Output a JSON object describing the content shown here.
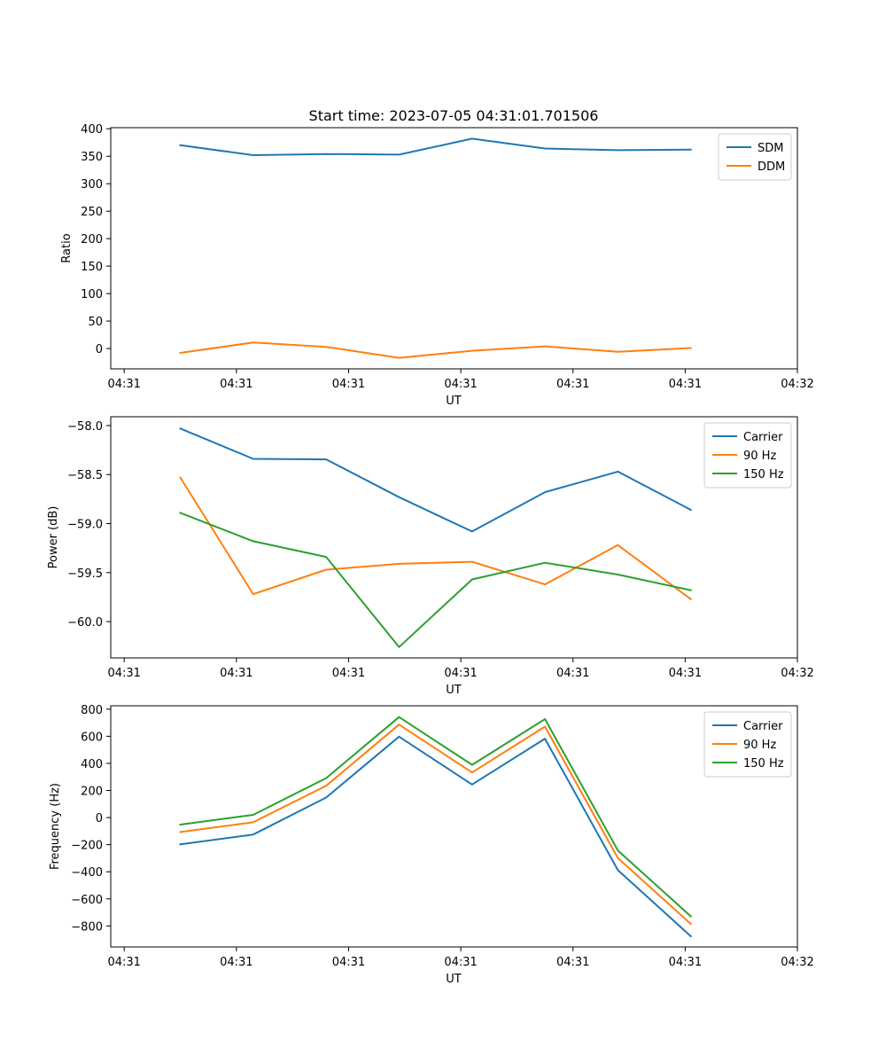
{
  "figure_title": "Start time: 2023-07-05 04:31:01.701506",
  "chart_data": [
    {
      "type": "line",
      "title": "Start time: 2023-07-05 04:31:01.701506",
      "xlabel": "UT",
      "ylabel": "Ratio",
      "x_tick_labels": [
        "04:31",
        "04:31",
        "04:31",
        "04:31",
        "04:31",
        "04:31",
        "04:32"
      ],
      "y_ticks": [
        0,
        50,
        100,
        150,
        200,
        250,
        300,
        350,
        400
      ],
      "ylim": [
        -37,
        402
      ],
      "legend": "upper right",
      "series": [
        {
          "name": "SDM",
          "color": "#1f77b4",
          "values": [
            370,
            352,
            354,
            353,
            382,
            364,
            361,
            362
          ]
        },
        {
          "name": "DDM",
          "color": "#ff7f0e",
          "values": [
            -8,
            11,
            3,
            -17,
            -4,
            4,
            -6,
            1
          ]
        }
      ]
    },
    {
      "type": "line",
      "title": "",
      "xlabel": "UT",
      "ylabel": "Power (dB)",
      "x_tick_labels": [
        "04:31",
        "04:31",
        "04:31",
        "04:31",
        "04:31",
        "04:31",
        "04:32"
      ],
      "y_ticks": [
        -60.0,
        -59.5,
        -59.0,
        -58.5,
        -58.0
      ],
      "y_tick_labels": [
        "−60.0",
        "−59.5",
        "−59.0",
        "−58.5",
        "−58.0"
      ],
      "ylim": [
        -60.37,
        -57.91
      ],
      "legend": "upper right",
      "series": [
        {
          "name": "Carrier",
          "color": "#1f77b4",
          "values": [
            -58.03,
            -58.34,
            -58.345,
            -58.73,
            -59.08,
            -58.68,
            -58.47,
            -58.86
          ]
        },
        {
          "name": "90 Hz",
          "color": "#ff7f0e",
          "values": [
            -58.53,
            -59.72,
            -59.47,
            -59.41,
            -59.39,
            -59.62,
            -59.22,
            -59.77
          ]
        },
        {
          "name": "150 Hz",
          "color": "#2ca02c",
          "values": [
            -58.89,
            -59.18,
            -59.34,
            -60.26,
            -59.57,
            -59.4,
            -59.52,
            -59.68
          ]
        }
      ]
    },
    {
      "type": "line",
      "title": "",
      "xlabel": "UT",
      "ylabel": "Frequency (Hz)",
      "x_tick_labels": [
        "04:31",
        "04:31",
        "04:31",
        "04:31",
        "04:31",
        "04:31",
        "04:32"
      ],
      "y_ticks": [
        -800,
        -600,
        -400,
        -200,
        0,
        200,
        400,
        600,
        800
      ],
      "y_tick_labels": [
        "−800",
        "−600",
        "−400",
        "−200",
        "0",
        "200",
        "400",
        "600",
        "800"
      ],
      "ylim": [
        -955,
        825
      ],
      "legend": "upper right",
      "series": [
        {
          "name": "Carrier",
          "color": "#1f77b4",
          "values": [
            -198,
            -125,
            148,
            597,
            244,
            582,
            -388,
            -876
          ]
        },
        {
          "name": "90 Hz",
          "color": "#ff7f0e",
          "values": [
            -107,
            -35,
            235,
            686,
            333,
            671,
            -299,
            -785
          ]
        },
        {
          "name": "150 Hz",
          "color": "#2ca02c",
          "values": [
            -52,
            20,
            291,
            742,
            389,
            727,
            -243,
            -729
          ]
        }
      ]
    }
  ]
}
